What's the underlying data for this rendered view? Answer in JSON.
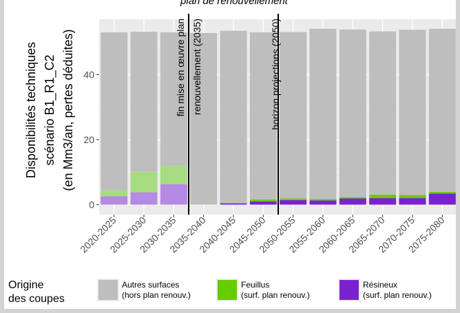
{
  "chart_data": {
    "type": "bar",
    "stacked": true,
    "title": "plan de renouvellement",
    "ylabel_lines": [
      "Disponibilités techniques",
      "scénario B1_R1_C2",
      "(en Mm3/an, pertes déduites)"
    ],
    "xlabel": "",
    "ylim": [
      0,
      57
    ],
    "y_ticks": [
      0,
      20,
      40
    ],
    "grid": true,
    "categories": [
      "2020-2025",
      "2025-2030",
      "2030-2035",
      "2035-2040",
      "2040-2045",
      "2045-2050",
      "2050-2055",
      "2055-2060",
      "2060-2065",
      "2065-2070",
      "2070-2075",
      "2075-2080"
    ],
    "series": [
      {
        "name": "Résineux",
        "values": [
          2.6,
          3.8,
          6.3,
          0,
          0.4,
          1.0,
          1.4,
          1.3,
          1.9,
          2.0,
          2.0,
          3.4
        ]
      },
      {
        "name": "Feuillus",
        "values": [
          1.8,
          6.3,
          5.7,
          0,
          0.1,
          0.6,
          0.5,
          0.4,
          0.4,
          1.1,
          1.0,
          0.5
        ]
      },
      {
        "name": "Autres surfaces",
        "values": [
          48.6,
          43.1,
          41.0,
          52.8,
          53.0,
          51.4,
          51.2,
          52.4,
          51.6,
          50.2,
          50.8,
          50.2
        ]
      }
    ],
    "shading": {
      "faded_categories": [
        "2020-2025",
        "2025-2030",
        "2030-2035"
      ]
    },
    "annotations": [
      {
        "label": "fin mise en œuvre plan renouvellement (2035)",
        "after_category": "2030-2035",
        "text_lines": [
          "fin mise en œuvre plan",
          "renouvellement (2035)"
        ]
      },
      {
        "label": "horizon projections (2050)",
        "after_category": "2045-2050",
        "text_lines": [
          "horizon projections (2050)"
        ]
      }
    ],
    "legend": {
      "title_lines": [
        "Origine",
        "des coupes"
      ],
      "placement": "bottom",
      "items": [
        {
          "key": "Autres surfaces",
          "line1": "Autres surfaces",
          "line2": "(hors plan renouv.)",
          "color": "#bebebe"
        },
        {
          "key": "Feuillus",
          "line1": "Feuillus",
          "line2": "(surf. plan renouv.)",
          "color": "#66cc00"
        },
        {
          "key": "Résineux",
          "line1": "Résineux",
          "line2": "(surf. plan renouv.)",
          "color": "#7b22cf"
        }
      ]
    },
    "colors": {
      "Autres surfaces": "#bebebe",
      "Feuillus": "#66cc00",
      "Résineux": "#7b22cf",
      "Feuillus_faded": "#a8dc82",
      "Résineux_faded": "#b58ae2",
      "panel_bg": "#ebebeb",
      "grid": "#ffffff"
    }
  }
}
